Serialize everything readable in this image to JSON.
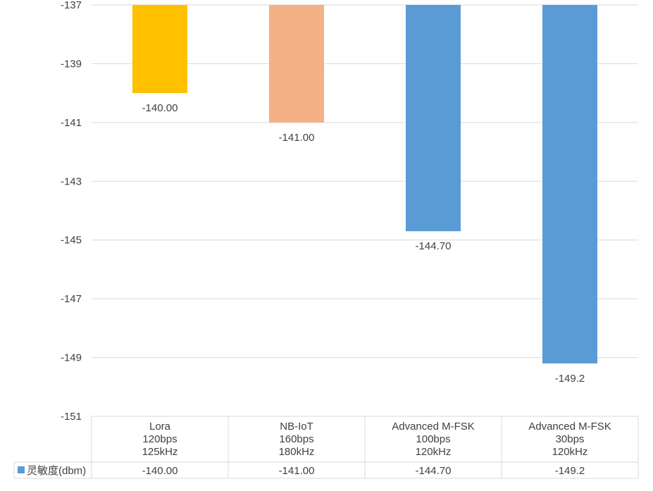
{
  "chart_data": {
    "type": "bar",
    "categories": [
      [
        "Lora",
        "120bps",
        "125kHz"
      ],
      [
        "NB-IoT",
        "160bps",
        "180kHz"
      ],
      [
        "Advanced M-FSK",
        "100bps",
        "120kHz"
      ],
      [
        "Advanced M-FSK",
        "30bps",
        "120kHz"
      ]
    ],
    "series": [
      {
        "name": "灵敏度(dbm)",
        "values": [
          -140.0,
          -141.0,
          -144.7,
          -149.2
        ],
        "data_labels": [
          "-140.00",
          "-141.00",
          "-144.70",
          "-149.2"
        ],
        "bar_colors": [
          "#FFC000",
          "#F4B183",
          "#5B9BD5",
          "#5B9BD5"
        ],
        "legend_color": "#5B9BD5"
      }
    ],
    "yticks": [
      "-137",
      "-139",
      "-141",
      "-143",
      "-145",
      "-147",
      "-149",
      "-151"
    ],
    "ylim": [
      -151,
      -137
    ],
    "grid": true,
    "legend": "data-table",
    "title": "",
    "xlabel": "",
    "ylabel": "",
    "colors": {
      "grid": "#D9D9D9",
      "text": "#404040"
    }
  }
}
